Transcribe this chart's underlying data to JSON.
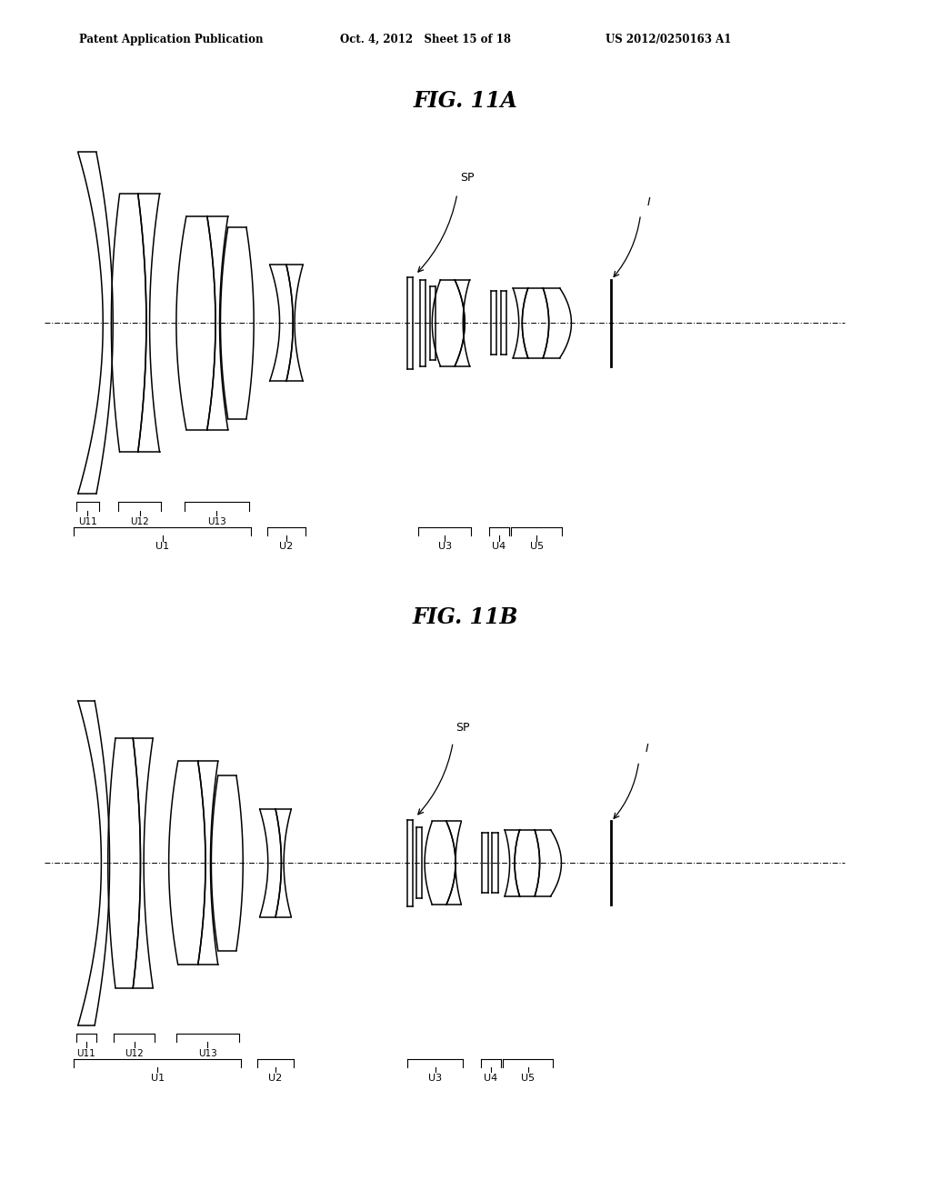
{
  "header_left": "Patent Application Publication",
  "header_mid": "Oct. 4, 2012   Sheet 15 of 18",
  "header_right": "US 2012/0250163 A1",
  "fig_11a_title": "FIG. 11A",
  "fig_11b_title": "FIG. 11B",
  "bg_color": "#ffffff",
  "line_color": "#000000",
  "lw": 1.1,
  "lw_axis": 0.8,
  "lw_bracket": 0.8
}
